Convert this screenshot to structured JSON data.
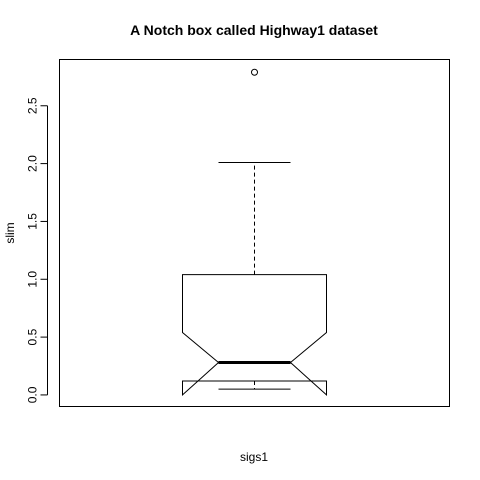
{
  "chart_data": {
    "type": "boxplot",
    "title": "A Notch box called Highway1 dataset",
    "xlabel": "sigs1",
    "ylabel": "slim",
    "ylim": [
      -0.1,
      2.9
    ],
    "yticks": [
      "0.0",
      "0.5",
      "1.0",
      "1.5",
      "2.0",
      "2.5"
    ],
    "y_tick_values": [
      0.0,
      0.5,
      1.0,
      1.5,
      2.0,
      2.5
    ],
    "notched": true,
    "grid": false,
    "box": {
      "whisker_low": 0.05,
      "q1": 0.12,
      "median": 0.28,
      "q3": 1.04,
      "whisker_high": 2.01,
      "notch_low": 0.0,
      "notch_high": 0.54,
      "outliers": [
        2.79
      ]
    }
  }
}
